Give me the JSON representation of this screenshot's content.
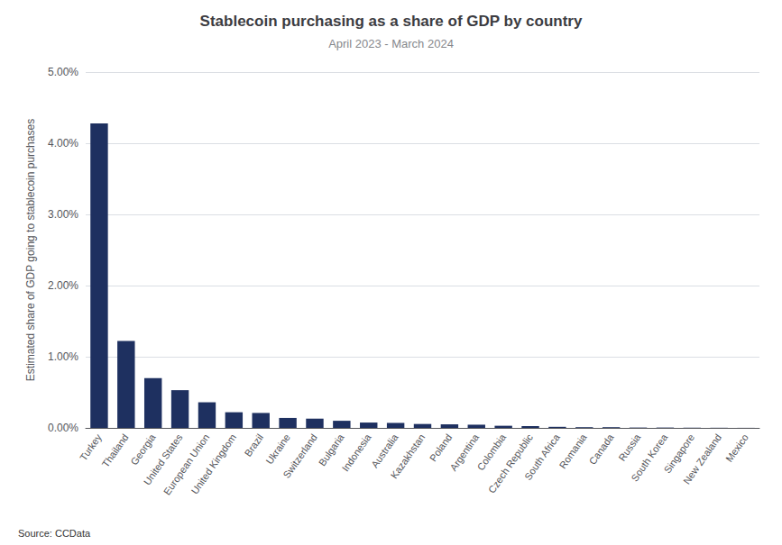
{
  "chart_data": {
    "type": "bar",
    "title": "Stablecoin purchasing as a share of GDP by country",
    "subtitle": "April 2023 - March 2024",
    "source": "Source: CCData",
    "ylabel": "Estimated share of GDP going to stablecoin purchases",
    "categories": [
      "Turkey",
      "Thailand",
      "Georgia",
      "United States",
      "European Union",
      "United Kingdom",
      "Brazil",
      "Ukraine",
      "Switzerland",
      "Bulgaria",
      "Indonesia",
      "Australia",
      "Kazakhstan",
      "Poland",
      "Argentina",
      "Colombia",
      "Czech Republic",
      "South Africa",
      "Romania",
      "Canada",
      "Russia",
      "South Korea",
      "Singapore",
      "New Zealand",
      "Mexico"
    ],
    "values": [
      0.0428,
      0.0122,
      0.007,
      0.0053,
      0.0036,
      0.0022,
      0.0021,
      0.0014,
      0.0013,
      0.001,
      0.00075,
      0.0007,
      0.00055,
      0.0005,
      0.00045,
      0.0003,
      0.00025,
      0.00015,
      0.0001,
      0.0001,
      5e-05,
      5e-05,
      3e-05,
      2e-05,
      1e-05
    ],
    "color": "#1e3060",
    "ylim": [
      0,
      0.05
    ],
    "yticks": [
      {
        "value": 0.0,
        "label": "0.00%"
      },
      {
        "value": 0.01,
        "label": "1.00%"
      },
      {
        "value": 0.02,
        "label": "2.00%"
      },
      {
        "value": 0.03,
        "label": "3.00%"
      },
      {
        "value": 0.04,
        "label": "4.00%"
      },
      {
        "value": 0.05,
        "label": "5.00%"
      }
    ],
    "grid": true
  }
}
